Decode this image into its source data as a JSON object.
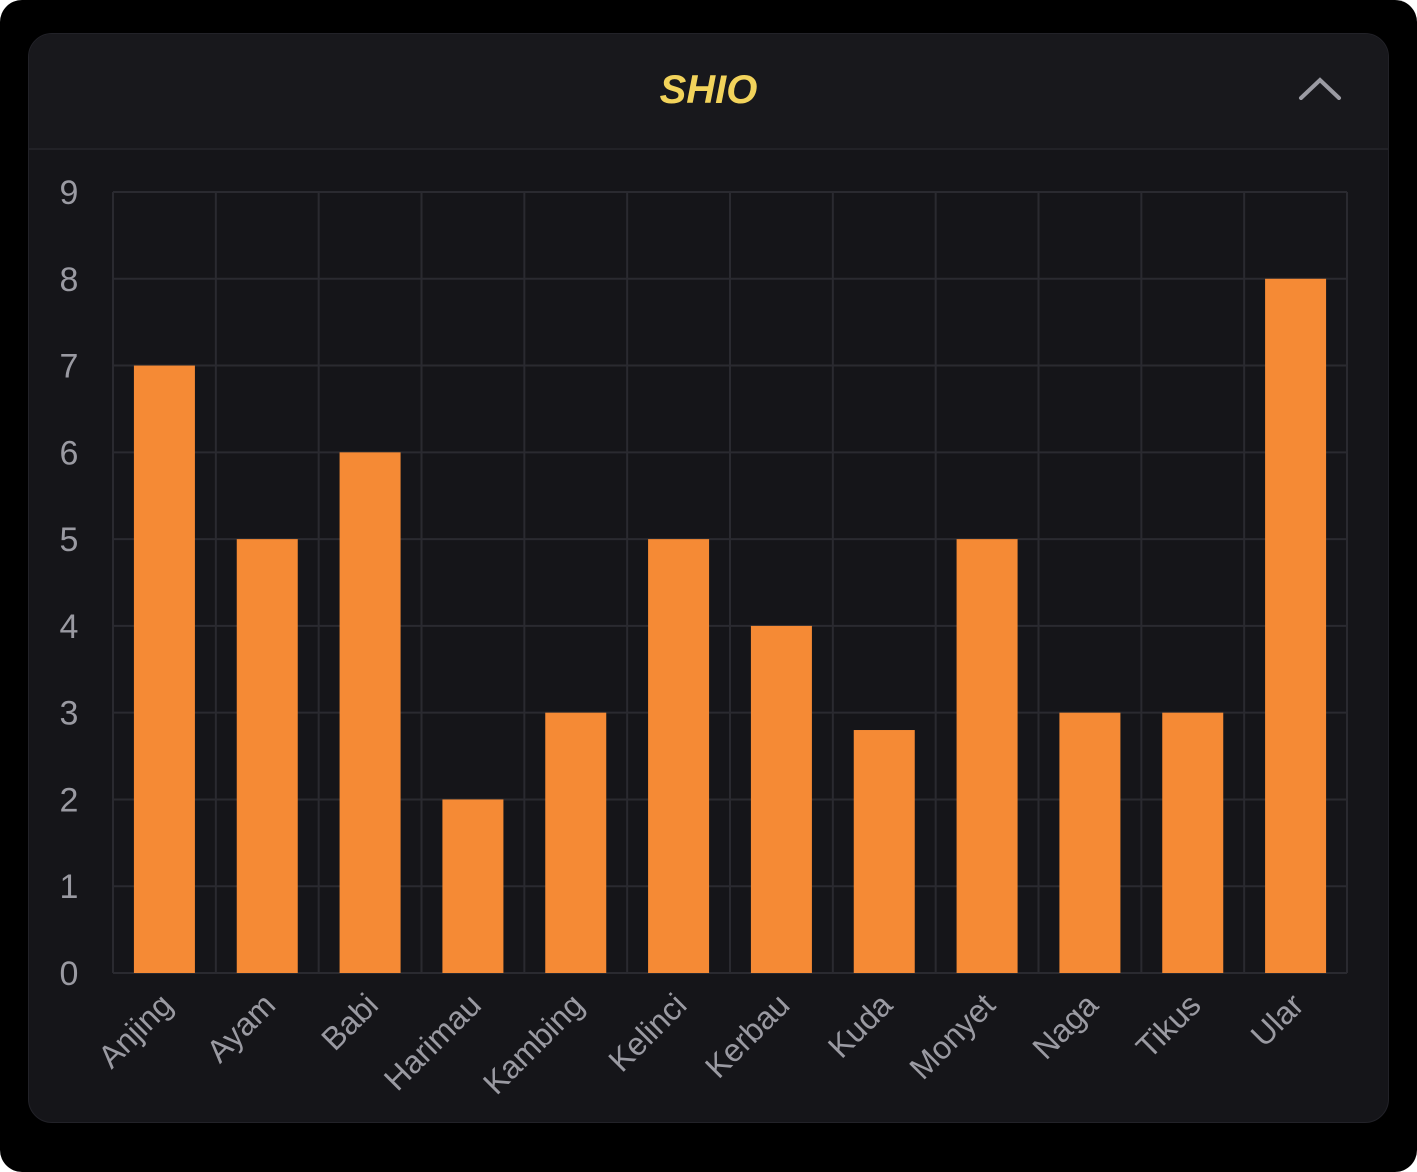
{
  "header": {
    "title": "SHIO",
    "collapse_icon": "chevron-up-icon"
  },
  "colors": {
    "bar": "#f58a35",
    "title": "#f2d35b",
    "background": "#151519",
    "grid": "#2a2a30",
    "tick": "#9a9aa2"
  },
  "chart_data": {
    "type": "bar",
    "title": "",
    "xlabel": "",
    "ylabel": "",
    "categories": [
      "Anjing",
      "Ayam",
      "Babi",
      "Harimau",
      "Kambing",
      "Kelinci",
      "Kerbau",
      "Kuda",
      "Monyet",
      "Naga",
      "Tikus",
      "Ular"
    ],
    "values": [
      7,
      5,
      6,
      2,
      3,
      5,
      4,
      2.8,
      5,
      3,
      3,
      8
    ],
    "ylim": [
      0,
      9
    ],
    "yticks": [
      "0",
      "1",
      "2",
      "3",
      "4",
      "5",
      "6",
      "7",
      "8",
      "9"
    ],
    "grid": true,
    "legend": "none"
  }
}
